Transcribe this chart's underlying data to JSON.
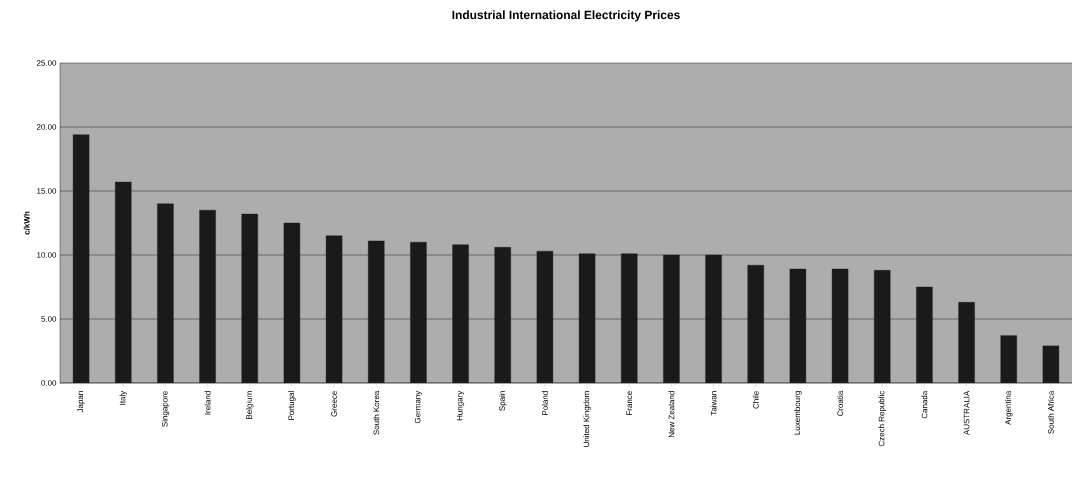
{
  "chart_data": {
    "type": "bar",
    "title": "Industrial International Electricity Prices",
    "ylabel": "c/kWh",
    "categories": [
      "Japan",
      "Italy",
      "Singapore",
      "Ireland",
      "Belgium",
      "Portugal",
      "Greece",
      "South Korea",
      "Germany",
      "Hungary",
      "Spain",
      "Poland",
      "United Kingdom",
      "France",
      "New Zealand",
      "Taiwan",
      "Chile",
      "Luxembourg",
      "Croatia",
      "Czech Republic",
      "Canada",
      "AUSTRALIA",
      "Argentina",
      "South Africa"
    ],
    "values": [
      19.4,
      15.7,
      14.0,
      13.5,
      13.2,
      12.5,
      11.5,
      11.1,
      11.0,
      10.8,
      10.6,
      10.3,
      10.1,
      10.1,
      10.0,
      10.0,
      9.2,
      8.9,
      8.9,
      8.8,
      7.5,
      6.3,
      3.7,
      2.9
    ],
    "color": "#1a1a1a",
    "ylim": [
      0,
      25
    ],
    "yticks": [
      {
        "value": 0,
        "label": "0.00"
      },
      {
        "value": 5,
        "label": "5.00"
      },
      {
        "value": 10,
        "label": "10.00"
      },
      {
        "value": 15,
        "label": "15.00"
      },
      {
        "value": 20,
        "label": "20.00"
      },
      {
        "value": 25,
        "label": "25.00"
      }
    ],
    "grid": "y"
  }
}
